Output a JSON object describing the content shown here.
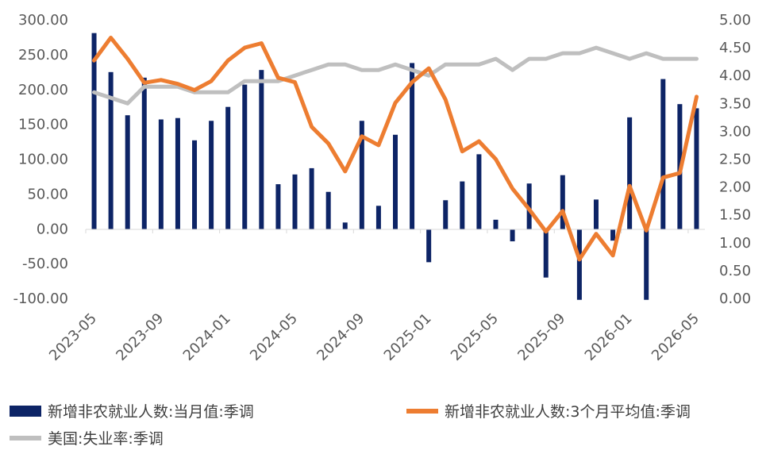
{
  "chart_data": {
    "type": "bar+line",
    "x": [
      "2023-05",
      "2023-06",
      "2023-07",
      "2023-08",
      "2023-09",
      "2023-10",
      "2023-11",
      "2023-12",
      "2024-01",
      "2024-02",
      "2024-03",
      "2024-04",
      "2024-05",
      "2024-06",
      "2024-07",
      "2024-08",
      "2024-09",
      "2024-10",
      "2024-11",
      "2024-12",
      "2025-01",
      "2025-02",
      "2025-03",
      "2025-04",
      "2025-05",
      "2025-06",
      "2025-07",
      "2025-08",
      "2025-09",
      "2025-10",
      "2025-11",
      "2025-12",
      "2026-01",
      "2026-02",
      "2026-03",
      "2026-04",
      "2026-05"
    ],
    "x_tick_labels": [
      "2023-05",
      "2023-09",
      "2024-01",
      "2024-05",
      "2024-09",
      "2025-01",
      "2025-05",
      "2025-09",
      "2026-01",
      "2026-05"
    ],
    "left_axis": {
      "ylim": [
        -100,
        300
      ],
      "ticks": [
        "300.00",
        "250.00",
        "200.00",
        "150.00",
        "100.00",
        "50.00",
        "0.00",
        "-50.00",
        "-100.00"
      ]
    },
    "right_axis": {
      "ylim": [
        0,
        5
      ],
      "ticks": [
        "5.00",
        "4.50",
        "4.00",
        "3.50",
        "3.00",
        "2.50",
        "2.00",
        "1.50",
        "1.00",
        "0.50",
        "0.00"
      ]
    },
    "series": [
      {
        "name": "新增非农就业人数:当月值:季调",
        "type": "bar",
        "axis": "left",
        "color": "#0d2466",
        "values": [
          281,
          225,
          163,
          217,
          157,
          159,
          127,
          155,
          175,
          207,
          228,
          64,
          78,
          87,
          53,
          9,
          155,
          33,
          135,
          238,
          -48,
          41,
          68,
          107,
          13,
          -18,
          65,
          -70,
          77,
          -102,
          42,
          -17,
          160,
          -102,
          215,
          179,
          173
        ]
      },
      {
        "name": "新增非农就业人数:3个月平均值:季调",
        "type": "line",
        "axis": "right",
        "color": "#ed7d31",
        "values": [
          4.27,
          4.68,
          4.3,
          3.87,
          3.92,
          3.85,
          3.74,
          3.9,
          4.27,
          4.5,
          4.58,
          3.96,
          3.88,
          3.08,
          2.78,
          2.28,
          2.91,
          2.75,
          3.51,
          3.88,
          4.13,
          3.57,
          2.64,
          2.82,
          2.5,
          1.97,
          1.6,
          1.2,
          1.57,
          0.7,
          1.16,
          0.77,
          2.02,
          1.22,
          2.17,
          2.25,
          3.62
        ]
      },
      {
        "name": "美国:失业率:季调",
        "type": "line",
        "axis": "right",
        "color": "#bfbfbf",
        "values": [
          3.7,
          3.6,
          3.5,
          3.8,
          3.8,
          3.8,
          3.7,
          3.7,
          3.7,
          3.9,
          3.9,
          3.9,
          4.0,
          4.1,
          4.2,
          4.2,
          4.1,
          4.1,
          4.2,
          4.1,
          4.0,
          4.2,
          4.2,
          4.2,
          4.3,
          4.1,
          4.3,
          4.3,
          4.4,
          4.4,
          4.5,
          4.4,
          4.3,
          4.4,
          4.3,
          4.3,
          4.3
        ]
      }
    ],
    "legend_position": "bottom",
    "grid": false
  }
}
